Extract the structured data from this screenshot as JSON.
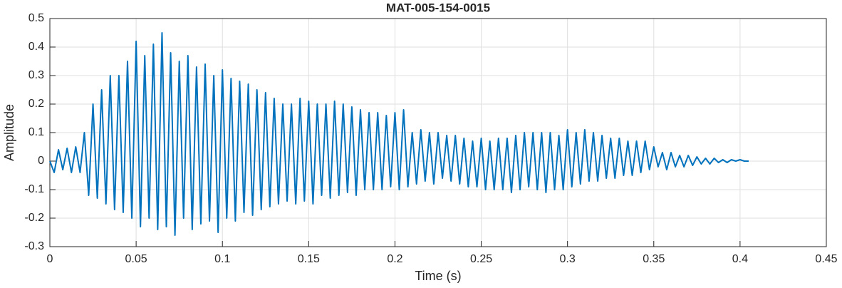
{
  "chart_data": {
    "type": "line",
    "title": "MAT-005-154-0015",
    "x_label": "Time (s)",
    "y_label": "Amplitude",
    "x": [
      0,
      0.0025,
      0.005,
      0.0075,
      0.01,
      0.0125,
      0.015,
      0.0175,
      0.02,
      0.0225,
      0.025,
      0.0275,
      0.03,
      0.0325,
      0.035,
      0.0375,
      0.04,
      0.0425,
      0.045,
      0.0475,
      0.05,
      0.0525,
      0.055,
      0.0575,
      0.06,
      0.0625,
      0.065,
      0.0675,
      0.07,
      0.0725,
      0.075,
      0.0775,
      0.08,
      0.0825,
      0.085,
      0.0875,
      0.09,
      0.0925,
      0.095,
      0.0975,
      0.1,
      0.1025,
      0.105,
      0.1075,
      0.11,
      0.1125,
      0.115,
      0.1175,
      0.12,
      0.1225,
      0.125,
      0.1275,
      0.13,
      0.1325,
      0.135,
      0.1375,
      0.14,
      0.1425,
      0.145,
      0.1475,
      0.15,
      0.1525,
      0.155,
      0.1575,
      0.16,
      0.1625,
      0.165,
      0.1675,
      0.17,
      0.1725,
      0.175,
      0.1775,
      0.18,
      0.1825,
      0.185,
      0.1875,
      0.19,
      0.1925,
      0.195,
      0.1975,
      0.2,
      0.2025,
      0.205,
      0.2075,
      0.21,
      0.2125,
      0.215,
      0.2175,
      0.22,
      0.2225,
      0.225,
      0.2275,
      0.23,
      0.2325,
      0.235,
      0.2375,
      0.24,
      0.2425,
      0.245,
      0.2475,
      0.25,
      0.2525,
      0.255,
      0.2575,
      0.26,
      0.2625,
      0.265,
      0.2675,
      0.27,
      0.2725,
      0.275,
      0.2775,
      0.28,
      0.2825,
      0.285,
      0.2875,
      0.29,
      0.2925,
      0.295,
      0.2975,
      0.3,
      0.3025,
      0.305,
      0.3075,
      0.31,
      0.3125,
      0.315,
      0.3175,
      0.32,
      0.3225,
      0.325,
      0.3275,
      0.33,
      0.3325,
      0.335,
      0.3375,
      0.34,
      0.3425,
      0.345,
      0.3475,
      0.35,
      0.3525,
      0.355,
      0.3575,
      0.36,
      0.3625,
      0.365,
      0.3675,
      0.37,
      0.3725,
      0.375,
      0.3775,
      0.38,
      0.3825,
      0.385,
      0.3875,
      0.39,
      0.3925,
      0.395,
      0.3975,
      0.4,
      0.4025,
      0.405
    ],
    "series": [
      {
        "color": "#0072bd",
        "values": [
          0,
          -0.04,
          0.04,
          -0.03,
          0.045,
          -0.04,
          0.05,
          -0.04,
          0.1,
          -0.12,
          0.2,
          -0.13,
          0.25,
          -0.15,
          0.3,
          -0.17,
          0.3,
          -0.18,
          0.35,
          -0.2,
          0.42,
          -0.23,
          0.37,
          -0.2,
          0.41,
          -0.24,
          0.45,
          -0.23,
          0.38,
          -0.26,
          0.35,
          -0.2,
          0.37,
          -0.24,
          0.33,
          -0.22,
          0.34,
          -0.21,
          0.3,
          -0.25,
          0.32,
          -0.2,
          0.29,
          -0.21,
          0.28,
          -0.18,
          0.27,
          -0.19,
          0.25,
          -0.17,
          0.24,
          -0.16,
          0.22,
          -0.15,
          0.2,
          -0.14,
          0.2,
          -0.15,
          0.22,
          -0.14,
          0.21,
          -0.15,
          0.2,
          -0.12,
          0.2,
          -0.13,
          0.21,
          -0.12,
          0.2,
          -0.11,
          0.19,
          -0.12,
          0.18,
          -0.1,
          0.17,
          -0.1,
          0.17,
          -0.1,
          0.16,
          -0.09,
          0.17,
          -0.1,
          0.18,
          -0.09,
          0.1,
          -0.08,
          0.11,
          -0.07,
          0.1,
          -0.08,
          0.1,
          -0.06,
          0.09,
          -0.07,
          0.09,
          -0.08,
          0.08,
          -0.09,
          0.07,
          -0.09,
          0.08,
          -0.1,
          0.07,
          -0.1,
          0.08,
          -0.1,
          0.08,
          -0.11,
          0.09,
          -0.1,
          0.1,
          -0.09,
          0.1,
          -0.1,
          0.1,
          -0.11,
          0.1,
          -0.1,
          0.09,
          -0.1,
          0.11,
          -0.09,
          0.1,
          -0.08,
          0.11,
          -0.07,
          0.1,
          -0.07,
          0.09,
          -0.06,
          0.08,
          -0.06,
          0.08,
          -0.05,
          0.07,
          -0.05,
          0.07,
          -0.04,
          0.07,
          -0.03,
          0.05,
          -0.02,
          0.03,
          -0.03,
          0.03,
          -0.02,
          0.02,
          -0.02,
          0.02,
          -0.015,
          0.015,
          -0.01,
          0.01,
          -0.01,
          0.01,
          -0.005,
          0.005,
          -0.005,
          0.005,
          0,
          0.005,
          0,
          0
        ]
      }
    ],
    "xlim": [
      0,
      0.45
    ],
    "xticks": [
      0,
      0.05,
      0.1,
      0.15,
      0.2,
      0.25,
      0.3,
      0.35,
      0.4,
      0.45
    ],
    "ylim": [
      -0.3,
      0.5
    ],
    "yticks": [
      -0.3,
      -0.2,
      -0.1,
      0,
      0.1,
      0.2,
      0.3,
      0.4,
      0.5
    ],
    "grid": true
  }
}
